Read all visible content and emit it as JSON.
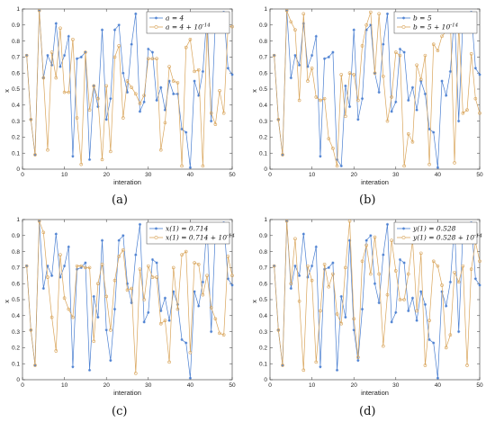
{
  "style": {
    "series1_color": "#4a7fd1",
    "series2_color": "#d9a55b"
  },
  "chart_data": [
    {
      "type": "line",
      "xlabel": "interation",
      "ylabel": "x",
      "xlim": [
        0,
        50
      ],
      "ylim": [
        0,
        1
      ],
      "xticks": [
        0,
        10,
        20,
        30,
        40,
        50
      ],
      "yticks": [
        0,
        0.1,
        0.2,
        0.3,
        0.4,
        0.5,
        0.6,
        0.7,
        0.8,
        0.9,
        1
      ],
      "legend_position": "top-right",
      "caption": "(a)",
      "series": [
        {
          "name": "a = 4",
          "marker": "star",
          "x": [
            1,
            2,
            3,
            4,
            5,
            6,
            7,
            8,
            9,
            10,
            11,
            12,
            13,
            14,
            15,
            16,
            17,
            18,
            19,
            20,
            21,
            22,
            23,
            24,
            25,
            26,
            27,
            28,
            29,
            30,
            31,
            32,
            33,
            34,
            35,
            36,
            37,
            38,
            39,
            40,
            41,
            42,
            43,
            44,
            45,
            46,
            47,
            48,
            49,
            50
          ],
          "values": [
            0.71,
            0.31,
            0.09,
            0.99,
            0.57,
            0.71,
            0.65,
            0.91,
            0.64,
            0.71,
            0.83,
            0.08,
            0.69,
            0.7,
            0.73,
            0.06,
            0.52,
            0.39,
            0.87,
            0.31,
            0.44,
            0.87,
            0.9,
            0.6,
            0.48,
            0.78,
            0.97,
            0.36,
            0.42,
            0.75,
            0.73,
            0.43,
            0.51,
            0.37,
            0.55,
            0.47,
            0.47,
            0.25,
            0.23,
            0.01,
            0.55,
            0.46,
            0.61,
            0.97,
            0.3,
            0.93,
            0.97,
            0.98,
            0.63,
            0.59
          ]
        },
        {
          "name": "a = 4 + 10^-14",
          "marker": "circle",
          "x": [
            1,
            2,
            3,
            4,
            5,
            6,
            7,
            8,
            9,
            10,
            11,
            12,
            13,
            14,
            15,
            16,
            17,
            18,
            19,
            20,
            21,
            22,
            23,
            24,
            25,
            26,
            27,
            28,
            29,
            30,
            31,
            32,
            33,
            34,
            35,
            36,
            37,
            38,
            39,
            40,
            41,
            42,
            43,
            44,
            45,
            46,
            47,
            48,
            49,
            50
          ],
          "values": [
            0.71,
            0.31,
            0.09,
            0.99,
            0.57,
            0.12,
            0.73,
            0.57,
            0.88,
            0.48,
            0.48,
            0.81,
            0.32,
            0.03,
            0.73,
            0.37,
            0.52,
            0.44,
            0.06,
            0.52,
            0.11,
            0.7,
            0.77,
            0.32,
            0.55,
            0.51,
            0.47,
            0.41,
            0.46,
            0.69,
            0.69,
            0.69,
            0.12,
            0.29,
            0.64,
            0.55,
            0.54,
            0.02,
            0.76,
            0.81,
            0.61,
            0.62,
            0.02,
            0.87,
            0.35,
            0.28,
            0.49,
            0.35,
            0.89,
            0.89
          ]
        }
      ]
    },
    {
      "type": "line",
      "xlabel": "interation",
      "ylabel": "x",
      "xlim": [
        0,
        50
      ],
      "ylim": [
        0,
        1
      ],
      "xticks": [
        0,
        10,
        20,
        30,
        40,
        50
      ],
      "yticks": [
        0,
        0.1,
        0.2,
        0.3,
        0.4,
        0.5,
        0.6,
        0.7,
        0.8,
        0.9,
        1
      ],
      "legend_position": "top-right",
      "caption": "(b)",
      "series": [
        {
          "name": "b = 5",
          "marker": "star",
          "x": [
            1,
            2,
            3,
            4,
            5,
            6,
            7,
            8,
            9,
            10,
            11,
            12,
            13,
            14,
            15,
            16,
            17,
            18,
            19,
            20,
            21,
            22,
            23,
            24,
            25,
            26,
            27,
            28,
            29,
            30,
            31,
            32,
            33,
            34,
            35,
            36,
            37,
            38,
            39,
            40,
            41,
            42,
            43,
            44,
            45,
            46,
            47,
            48,
            49,
            50
          ],
          "values": [
            0.71,
            0.31,
            0.09,
            0.99,
            0.57,
            0.71,
            0.65,
            0.91,
            0.64,
            0.71,
            0.83,
            0.08,
            0.69,
            0.7,
            0.73,
            0.06,
            0.02,
            0.52,
            0.39,
            0.87,
            0.31,
            0.44,
            0.87,
            0.9,
            0.6,
            0.48,
            0.78,
            0.97,
            0.36,
            0.42,
            0.75,
            0.73,
            0.43,
            0.51,
            0.37,
            0.55,
            0.47,
            0.25,
            0.23,
            0.01,
            0.55,
            0.46,
            0.61,
            0.97,
            0.3,
            0.93,
            0.97,
            0.98,
            0.63,
            0.59
          ]
        },
        {
          "name": "b = 5 + 10^-14",
          "marker": "circle",
          "x": [
            1,
            2,
            3,
            4,
            5,
            6,
            7,
            8,
            9,
            10,
            11,
            12,
            13,
            14,
            15,
            16,
            17,
            18,
            19,
            20,
            21,
            22,
            23,
            24,
            25,
            26,
            27,
            28,
            29,
            30,
            31,
            32,
            33,
            34,
            35,
            36,
            37,
            38,
            39,
            40,
            41,
            42,
            43,
            44,
            45,
            46,
            47,
            48,
            49,
            50
          ],
          "values": [
            0.71,
            0.31,
            0.09,
            0.99,
            0.92,
            0.87,
            0.43,
            0.97,
            0.55,
            0.63,
            0.45,
            0.43,
            0.44,
            0.19,
            0.13,
            0.02,
            0.59,
            0.33,
            0.6,
            0.59,
            0.43,
            0.77,
            0.9,
            0.98,
            0.6,
            0.97,
            0.58,
            0.3,
            0.45,
            0.73,
            0.71,
            0.02,
            0.22,
            0.17,
            0.65,
            0.56,
            0.71,
            0.03,
            0.78,
            0.74,
            0.83,
            0.86,
            0.93,
            0.04,
            0.9,
            0.35,
            0.37,
            0.72,
            0.44,
            0.35
          ]
        }
      ]
    },
    {
      "type": "line",
      "xlabel": "interation",
      "ylabel": "x",
      "xlim": [
        0,
        50
      ],
      "ylim": [
        0,
        1
      ],
      "xticks": [
        0,
        10,
        20,
        30,
        40,
        50
      ],
      "yticks": [
        0,
        0.1,
        0.2,
        0.3,
        0.4,
        0.5,
        0.6,
        0.7,
        0.8,
        0.9,
        1
      ],
      "legend_position": "top-right",
      "caption": "(c)",
      "series": [
        {
          "name": "x(1) = 0.714",
          "marker": "star",
          "x": [
            1,
            2,
            3,
            4,
            5,
            6,
            7,
            8,
            9,
            10,
            11,
            12,
            13,
            14,
            15,
            16,
            17,
            18,
            19,
            20,
            21,
            22,
            23,
            24,
            25,
            26,
            27,
            28,
            29,
            30,
            31,
            32,
            33,
            34,
            35,
            36,
            37,
            38,
            39,
            40,
            41,
            42,
            43,
            44,
            45,
            46,
            47,
            48,
            49,
            50
          ],
          "values": [
            0.71,
            0.31,
            0.09,
            0.99,
            0.57,
            0.71,
            0.65,
            0.91,
            0.64,
            0.71,
            0.83,
            0.08,
            0.69,
            0.7,
            0.73,
            0.06,
            0.52,
            0.39,
            0.87,
            0.31,
            0.12,
            0.44,
            0.87,
            0.9,
            0.6,
            0.48,
            0.78,
            0.97,
            0.36,
            0.42,
            0.75,
            0.73,
            0.43,
            0.51,
            0.37,
            0.55,
            0.47,
            0.25,
            0.23,
            0.01,
            0.55,
            0.46,
            0.61,
            0.97,
            0.3,
            0.93,
            0.97,
            0.98,
            0.63,
            0.59
          ]
        },
        {
          "name": "x(1) = 0.714 + 10^-14",
          "marker": "circle",
          "x": [
            1,
            2,
            3,
            4,
            5,
            6,
            7,
            8,
            9,
            10,
            11,
            12,
            13,
            14,
            15,
            16,
            17,
            18,
            19,
            20,
            21,
            22,
            23,
            24,
            25,
            26,
            27,
            28,
            29,
            30,
            31,
            32,
            33,
            34,
            35,
            36,
            37,
            38,
            39,
            40,
            41,
            42,
            43,
            44,
            45,
            46,
            47,
            48,
            49,
            50
          ],
          "values": [
            0.71,
            0.31,
            0.09,
            0.99,
            0.92,
            0.64,
            0.39,
            0.18,
            0.78,
            0.51,
            0.44,
            0.39,
            0.71,
            0.71,
            0.7,
            0.7,
            0.24,
            0.6,
            0.72,
            0.52,
            0.31,
            0.62,
            0.77,
            0.81,
            0.56,
            0.57,
            0.04,
            0.69,
            0.5,
            0.71,
            0.64,
            0.64,
            0.35,
            0.37,
            0.11,
            0.7,
            0.44,
            0.78,
            0.8,
            0.17,
            0.73,
            0.72,
            0.53,
            0.65,
            0.45,
            0.38,
            0.29,
            0.28,
            0.77,
            0.65
          ]
        }
      ]
    },
    {
      "type": "line",
      "xlabel": "interation",
      "ylabel": "x",
      "xlim": [
        0,
        50
      ],
      "ylim": [
        0,
        1
      ],
      "xticks": [
        0,
        10,
        20,
        30,
        40,
        50
      ],
      "yticks": [
        0,
        0.1,
        0.2,
        0.3,
        0.4,
        0.5,
        0.6,
        0.7,
        0.8,
        0.9,
        1
      ],
      "legend_position": "top-right",
      "caption": "(d)",
      "series": [
        {
          "name": "y(1) = 0.528",
          "marker": "star",
          "x": [
            1,
            2,
            3,
            4,
            5,
            6,
            7,
            8,
            9,
            10,
            11,
            12,
            13,
            14,
            15,
            16,
            17,
            18,
            19,
            20,
            21,
            22,
            23,
            24,
            25,
            26,
            27,
            28,
            29,
            30,
            31,
            32,
            33,
            34,
            35,
            36,
            37,
            38,
            39,
            40,
            41,
            42,
            43,
            44,
            45,
            46,
            47,
            48,
            49,
            50
          ],
          "values": [
            0.71,
            0.31,
            0.09,
            0.99,
            0.57,
            0.71,
            0.65,
            0.91,
            0.64,
            0.71,
            0.83,
            0.08,
            0.69,
            0.7,
            0.73,
            0.06,
            0.52,
            0.39,
            0.87,
            0.31,
            0.12,
            0.44,
            0.87,
            0.9,
            0.6,
            0.48,
            0.78,
            0.97,
            0.36,
            0.42,
            0.75,
            0.73,
            0.43,
            0.51,
            0.37,
            0.55,
            0.47,
            0.25,
            0.23,
            0.01,
            0.55,
            0.46,
            0.61,
            0.97,
            0.3,
            0.93,
            0.97,
            0.98,
            0.63,
            0.59
          ]
        },
        {
          "name": "y(1) = 0.528 + 10^-14",
          "marker": "circle",
          "x": [
            1,
            2,
            3,
            4,
            5,
            6,
            7,
            8,
            9,
            10,
            11,
            12,
            13,
            14,
            15,
            16,
            17,
            18,
            19,
            20,
            21,
            22,
            23,
            24,
            25,
            26,
            27,
            28,
            29,
            30,
            31,
            32,
            33,
            34,
            35,
            36,
            37,
            38,
            39,
            40,
            41,
            42,
            43,
            44,
            45,
            46,
            47,
            48,
            49,
            50
          ],
          "values": [
            0.71,
            0.31,
            0.09,
            0.99,
            0.6,
            0.88,
            0.49,
            0.06,
            0.71,
            0.62,
            0.11,
            0.43,
            0.72,
            0.58,
            0.66,
            0.41,
            0.35,
            0.7,
            0.99,
            0.38,
            0.14,
            0.74,
            0.84,
            0.66,
            0.89,
            0.66,
            0.21,
            0.53,
            0.87,
            0.68,
            0.5,
            0.5,
            0.66,
            0.87,
            0.43,
            0.79,
            0.09,
            0.37,
            0.74,
            0.71,
            0.59,
            0.2,
            0.28,
            0.67,
            0.61,
            0.71,
            0.09,
            0.69,
            0.86,
            0.74
          ]
        }
      ]
    }
  ]
}
